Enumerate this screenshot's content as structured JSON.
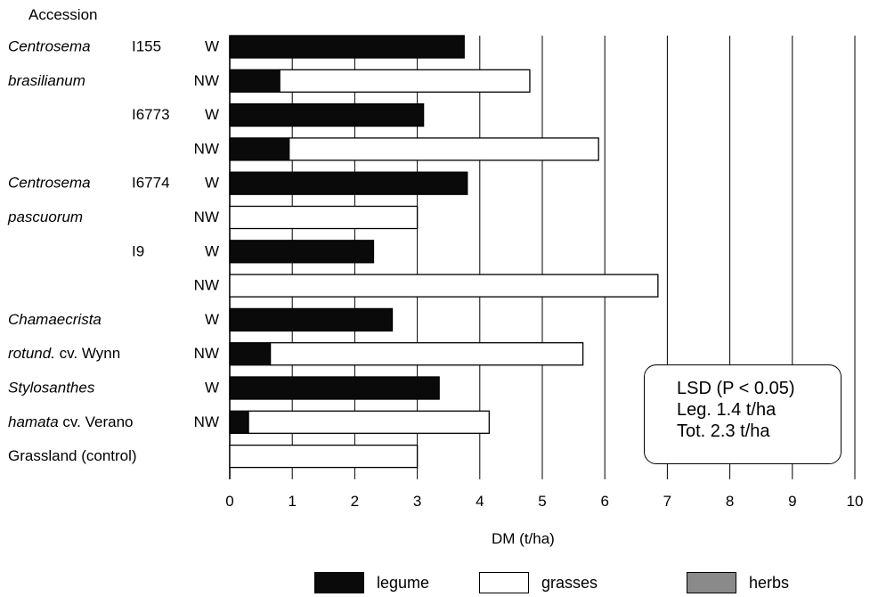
{
  "colors": {
    "legume": "#0a0a0a",
    "grasses": "#ffffff",
    "herbs": "#8a8a8a",
    "grid": "#000000"
  },
  "chart_data": {
    "type": "bar",
    "orientation": "horizontal",
    "stacked": true,
    "row_header": "Accession",
    "xlabel": "DM (t/ha)",
    "xlim": [
      0,
      10
    ],
    "xticks": [
      "0",
      "1",
      "2",
      "3",
      "4",
      "5",
      "6",
      "7",
      "8",
      "9",
      "10"
    ],
    "grid": "vertical",
    "legend_position": "bottom",
    "series": [
      {
        "name": "legume",
        "color": "#0a0a0a"
      },
      {
        "name": "grasses",
        "color": "#ffffff"
      },
      {
        "name": "herbs",
        "color": "#8a8a8a"
      }
    ],
    "rows": [
      {
        "species": [
          "Centrosema",
          "brasilianum"
        ],
        "accession": "I155",
        "treatment": "W",
        "legume": 3.75,
        "grasses": 0,
        "herbs": 0
      },
      {
        "species": [],
        "accession": "",
        "treatment": "NW",
        "legume": 0.8,
        "grasses": 4.0,
        "herbs": 0
      },
      {
        "species": [],
        "accession": "I6773",
        "treatment": "W",
        "legume": 3.1,
        "grasses": 0,
        "herbs": 0
      },
      {
        "species": [],
        "accession": "",
        "treatment": "NW",
        "legume": 0.95,
        "grasses": 4.95,
        "herbs": 0
      },
      {
        "species": [
          "Centrosema",
          "pascuorum"
        ],
        "accession": "I6774",
        "treatment": "W",
        "legume": 3.8,
        "grasses": 0,
        "herbs": 0
      },
      {
        "species": [],
        "accession": "",
        "treatment": "NW",
        "legume": 0,
        "grasses": 3.0,
        "herbs": 0
      },
      {
        "species": [],
        "accession": "I9",
        "treatment": "W",
        "legume": 2.3,
        "grasses": 0,
        "herbs": 0
      },
      {
        "species": [],
        "accession": "",
        "treatment": "NW",
        "legume": 0,
        "grasses": 6.85,
        "herbs": 0
      },
      {
        "species": [
          "Chamaecrista",
          "rotund. cv. Wynn"
        ],
        "accession": "",
        "treatment": "W",
        "legume": 2.6,
        "grasses": 0,
        "herbs": 0
      },
      {
        "species": [],
        "accession": "",
        "treatment": "NW",
        "legume": 0.65,
        "grasses": 5.0,
        "herbs": 0
      },
      {
        "species": [
          "Stylosanthes",
          "hamata cv. Verano"
        ],
        "accession": "",
        "treatment": "W",
        "legume": 3.35,
        "grasses": 0,
        "herbs": 0
      },
      {
        "species": [],
        "accession": "",
        "treatment": "NW",
        "legume": 0.3,
        "grasses": 3.85,
        "herbs": 0
      },
      {
        "species": [
          "Grassland (control)"
        ],
        "accession": "",
        "treatment": "",
        "legume": 0,
        "grasses": 3.0,
        "herbs": 0
      }
    ],
    "annotation": {
      "title": "LSD  (P < 0.05)",
      "leg": "Leg.  1.4  t/ha",
      "tot": "Tot.  2.3  t/ha"
    }
  }
}
